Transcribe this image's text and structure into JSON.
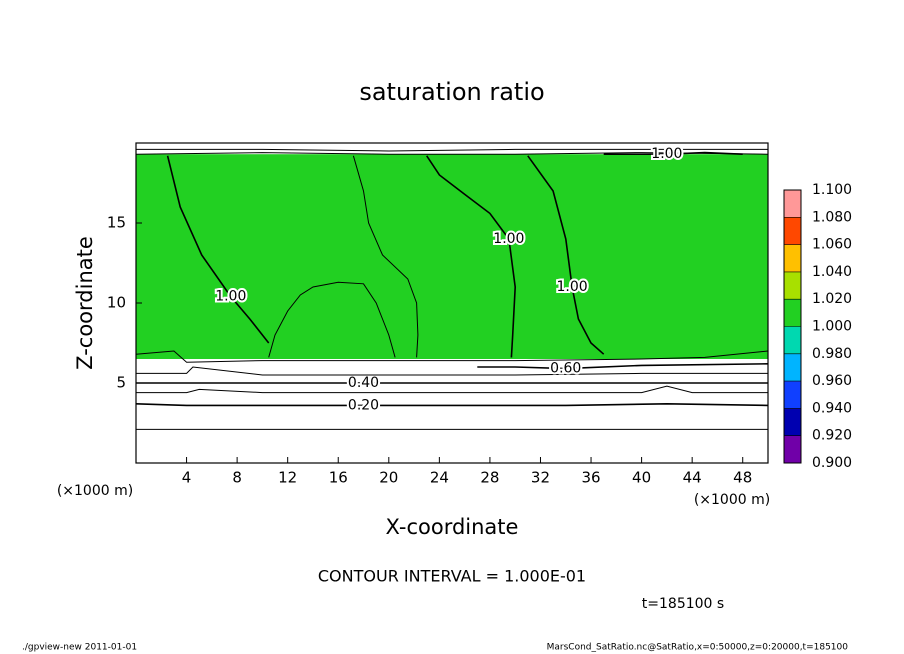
{
  "chart_data": {
    "type": "contour",
    "title": "saturation ratio",
    "x_label": "X-coordinate",
    "y_label": "Z-coordinate",
    "x_unit": "(×1000 m)",
    "y_unit": "(×1000 m)",
    "xlim": [
      0,
      50
    ],
    "ylim": [
      0,
      20
    ],
    "xticks": [
      4,
      8,
      12,
      16,
      20,
      24,
      28,
      32,
      36,
      40,
      44,
      48
    ],
    "yticks": [
      5,
      10,
      15
    ],
    "field": {
      "z_edges": [
        0,
        2,
        3.6,
        4.4,
        5,
        6.5,
        19.3,
        20
      ],
      "values": [
        0.1,
        0.3,
        0.4,
        0.5,
        0.7,
        1.01,
        0.8
      ]
    },
    "contours": [
      {
        "x": [
          0,
          10,
          20,
          30,
          40,
          50
        ],
        "z": [
          2.1,
          2.1,
          2.1,
          2.1,
          2.1,
          2.1
        ]
      },
      {
        "label": "0.20",
        "x": [
          0,
          4,
          8,
          12,
          18,
          26,
          34,
          42,
          50
        ],
        "z": [
          3.7,
          3.6,
          3.6,
          3.6,
          3.6,
          3.6,
          3.6,
          3.7,
          3.6
        ]
      },
      {
        "x": [
          0,
          4,
          5,
          10,
          20,
          30,
          40,
          42,
          44,
          50
        ],
        "z": [
          4.4,
          4.4,
          4.6,
          4.4,
          4.4,
          4.4,
          4.4,
          4.8,
          4.4,
          4.4
        ]
      },
      {
        "label": "0.40",
        "x": [
          0,
          4,
          8,
          12,
          18,
          26,
          34,
          42,
          50
        ],
        "z": [
          5.0,
          5.0,
          5.0,
          5.0,
          5.0,
          5.0,
          5.0,
          5.0,
          5.0
        ]
      },
      {
        "x": [
          0,
          4,
          4.5,
          10,
          20,
          30,
          40,
          50
        ],
        "z": [
          5.6,
          5.6,
          6.0,
          5.5,
          5.5,
          5.5,
          5.6,
          5.6
        ]
      },
      {
        "label": "0.60",
        "x": [
          27,
          30,
          34,
          40,
          50
        ],
        "z": [
          6.0,
          6.0,
          5.9,
          6.1,
          6.2
        ]
      },
      {
        "x": [
          0,
          3,
          4,
          10,
          20,
          30,
          40,
          45,
          50
        ],
        "z": [
          6.8,
          7.0,
          6.3,
          6.4,
          6.4,
          6.4,
          6.5,
          6.6,
          7.0
        ]
      },
      {
        "x": [
          0,
          10,
          20,
          30,
          40,
          50
        ],
        "z": [
          19.3,
          19.4,
          19.3,
          19.3,
          19.4,
          19.3
        ]
      },
      {
        "x": [
          0,
          10,
          20,
          30,
          40,
          50
        ],
        "z": [
          19.6,
          19.6,
          19.5,
          19.6,
          19.6,
          19.6
        ]
      },
      {
        "x": [
          10.5,
          11,
          12,
          13,
          14,
          16,
          18,
          19,
          20,
          20.5
        ],
        "z": [
          6.6,
          8,
          9.5,
          10.5,
          11,
          11.3,
          11.2,
          10,
          8,
          6.6
        ]
      },
      {
        "label": "1.00",
        "x": [
          2.5,
          3.5,
          5.2,
          7.5,
          9,
          10.5
        ],
        "z": [
          19.2,
          16,
          13,
          10.4,
          9,
          7.5
        ]
      },
      {
        "x": [
          17.2,
          18,
          18.4,
          19.5,
          21.5,
          22.2,
          22.3,
          22.2
        ],
        "z": [
          19.2,
          17,
          15,
          13,
          11.5,
          10,
          8,
          6.6
        ]
      },
      {
        "label": "1.00",
        "x": [
          23,
          24,
          26,
          28,
          29.5,
          30,
          29.8,
          29.7
        ],
        "z": [
          19.2,
          18,
          16.8,
          15.6,
          14,
          11,
          8,
          6.6
        ]
      },
      {
        "label": "1.00",
        "x": [
          31,
          33,
          34,
          34.5,
          35,
          36,
          37
        ],
        "z": [
          19.2,
          17,
          14,
          11,
          9,
          7.5,
          6.8
        ]
      },
      {
        "label": "1.00",
        "x": [
          37,
          40,
          42,
          45,
          48
        ],
        "z": [
          19.3,
          19.3,
          19.3,
          19.4,
          19.3
        ]
      }
    ],
    "colorbar": {
      "levels": [
        {
          "value": 0.9,
          "label": "0.900"
        },
        {
          "value": 0.92,
          "label": "0.920"
        },
        {
          "value": 0.94,
          "label": "0.940"
        },
        {
          "value": 0.96,
          "label": "0.960"
        },
        {
          "value": 0.98,
          "label": "0.980"
        },
        {
          "value": 1.0,
          "label": "1.000"
        },
        {
          "value": 1.02,
          "label": "1.020"
        },
        {
          "value": 1.04,
          "label": "1.040"
        },
        {
          "value": 1.06,
          "label": "1.060"
        },
        {
          "value": 1.08,
          "label": "1.080"
        },
        {
          "value": 1.1,
          "label": "1.100"
        }
      ],
      "colors": [
        "#7000a8",
        "#0000b0",
        "#1040ff",
        "#00b4ff",
        "#00d8b0",
        "#22d022",
        "#a8e000",
        "#ffc000",
        "#ff4800",
        "#ff9898"
      ]
    },
    "note": "CONTOUR INTERVAL = 1.000E-01",
    "time": "t=185100 s",
    "footer_left": "./gpview-new  2011-01-01",
    "footer_right": "MarsCond_SatRatio.nc@SatRatio,x=0:50000,z=0:20000,t=185100"
  }
}
